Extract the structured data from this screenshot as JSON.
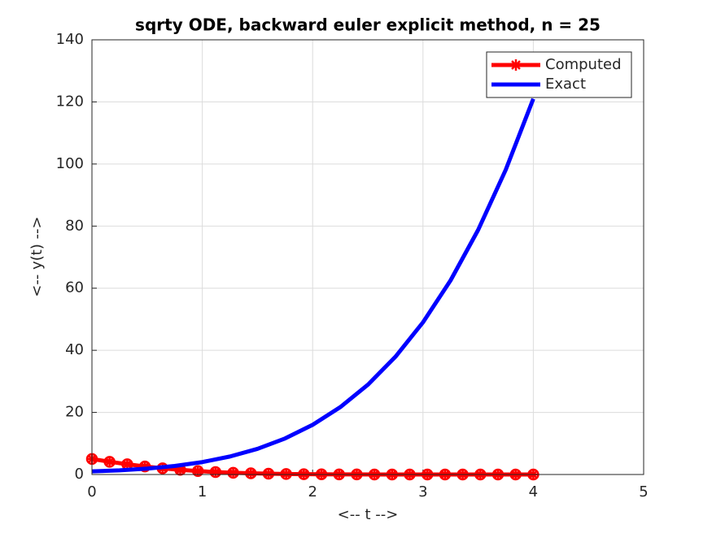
{
  "chart_data": {
    "type": "line",
    "title": "sqrty ODE, backward euler explicit method, n = 25",
    "x_label": "<-- t -->",
    "y_label": "<-- y(t) -->",
    "xlim": [
      0,
      5
    ],
    "xticks": [
      0,
      1,
      2,
      3,
      4,
      5
    ],
    "ylim": [
      0,
      140
    ],
    "yticks": [
      0,
      20,
      40,
      60,
      80,
      100,
      120,
      140
    ],
    "grid": true,
    "legend": "top-right",
    "series": [
      {
        "name": "Computed",
        "color": "#ff0000",
        "marker": true,
        "x": [
          0,
          0.16,
          0.32,
          0.48,
          0.64,
          0.8,
          0.96,
          1.12,
          1.28,
          1.44,
          1.6,
          1.76,
          1.92,
          2.08,
          2.24,
          2.4,
          2.56,
          2.72,
          2.88,
          3.04,
          3.2,
          3.36,
          3.52,
          3.68,
          3.84,
          4.0
        ],
        "values": [
          5,
          4.1,
          3.3,
          2.6,
          2.0,
          1.5,
          1.1,
          0.8,
          0.55,
          0.38,
          0.25,
          0.16,
          0.1,
          0.06,
          0.04,
          0.02,
          0.01,
          0.01,
          0,
          0,
          0,
          0,
          0,
          0,
          0,
          0
        ]
      },
      {
        "name": "Exact",
        "color": "#0000ff",
        "marker": false,
        "x": [
          0,
          0.25,
          0.5,
          0.75,
          1,
          1.25,
          1.5,
          1.75,
          2,
          2.25,
          2.5,
          2.75,
          3,
          3.25,
          3.5,
          3.75,
          4
        ],
        "values": [
          1,
          1.337,
          1.891,
          2.743,
          4,
          5.79,
          8.266,
          11.603,
          16,
          21.681,
          28.891,
          37.899,
          49,
          62.509,
          78.766,
          98.134,
          121
        ]
      }
    ]
  }
}
